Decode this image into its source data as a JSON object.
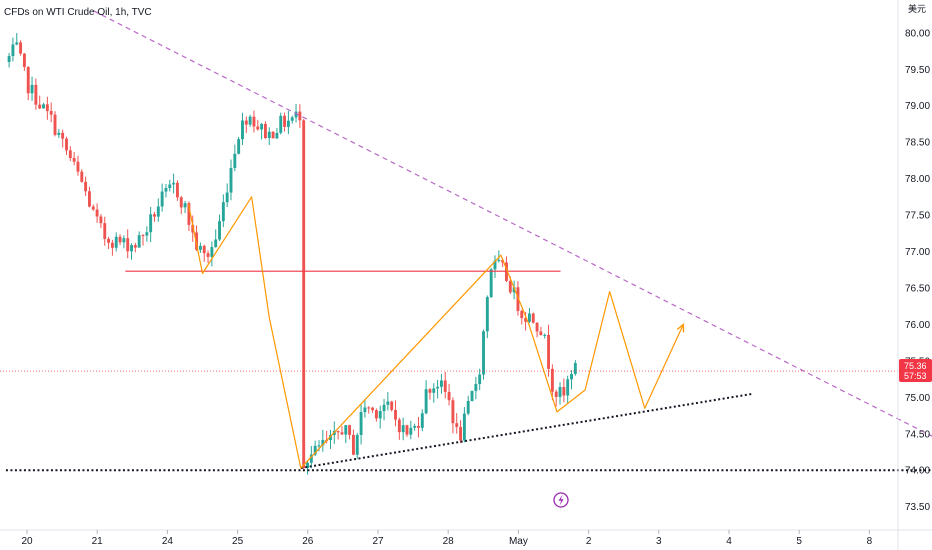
{
  "title": "CFDs on WTI Crude Oil, 1h, TVC",
  "currency_label": "美元",
  "current_price": "75.36",
  "countdown": "57:53",
  "colors": {
    "up": "#26a69a",
    "down": "#ef5350",
    "resistance": "#f23645",
    "pattern": "#ff9800",
    "trend_top": "#ba68c8",
    "support": "#131722",
    "current_price_line": "#f23645",
    "lightning": "#9c27b0"
  },
  "icons": {
    "lightning": "lightning-bolt-icon"
  },
  "chart_data": {
    "type": "candlestick",
    "title": "CFDs on WTI Crude Oil, 1h, TVC",
    "xlabel": "",
    "ylabel": "",
    "x_ticks": [
      "20",
      "21",
      "24",
      "25",
      "26",
      "27",
      "28",
      "May",
      "2",
      "3",
      "4",
      "5",
      "8"
    ],
    "y_ticks": [
      "80.00",
      "79.50",
      "79.00",
      "78.50",
      "78.00",
      "77.50",
      "77.00",
      "76.50",
      "76.00",
      "75.50",
      "75.00",
      "74.50",
      "74.00",
      "73.50"
    ],
    "ylim": [
      73.18,
      80.45
    ],
    "xlim": [
      19.7,
      8.3
    ],
    "grid": false,
    "close_path": [
      [
        19.7,
        79.6
      ],
      [
        19.85,
        79.8
      ],
      [
        20.0,
        79.3
      ],
      [
        20.2,
        79.0
      ],
      [
        20.35,
        78.8
      ],
      [
        20.5,
        78.5
      ],
      [
        20.65,
        78.2
      ],
      [
        20.8,
        77.9
      ],
      [
        20.95,
        77.5
      ],
      [
        21.1,
        77.2
      ],
      [
        21.25,
        77.15
      ],
      [
        21.4,
        77.1
      ],
      [
        21.55,
        77.1
      ],
      [
        21.7,
        77.3
      ],
      [
        21.9,
        77.7
      ],
      [
        22.1,
        77.9
      ],
      [
        22.25,
        77.6
      ],
      [
        22.4,
        77.1
      ],
      [
        22.55,
        76.9
      ],
      [
        22.7,
        77.2
      ],
      [
        22.85,
        77.9
      ],
      [
        23.0,
        78.6
      ],
      [
        23.15,
        78.9
      ],
      [
        23.3,
        78.7
      ],
      [
        23.45,
        78.6
      ],
      [
        23.6,
        78.75
      ],
      [
        23.75,
        78.8
      ],
      [
        23.9,
        78.9
      ],
      [
        24.05,
        78.3
      ],
      [
        24.2,
        77.9
      ],
      [
        24.35,
        77.2
      ],
      [
        24.5,
        76.8
      ],
      [
        24.65,
        76.9
      ],
      [
        24.8,
        77.2
      ],
      [
        24.95,
        77.5
      ],
      [
        25.1,
        77.7
      ],
      [
        25.2,
        77.3
      ],
      [
        25.3,
        77.0
      ],
      [
        25.45,
        76.8
      ],
      [
        25.6,
        76.0
      ],
      [
        25.75,
        74.9
      ],
      [
        25.9,
        74.1
      ],
      [
        26.05,
        74.2
      ],
      [
        26.2,
        74.35
      ],
      [
        26.35,
        74.4
      ],
      [
        26.5,
        74.6
      ],
      [
        26.65,
        74.3
      ],
      [
        26.8,
        74.9
      ],
      [
        26.95,
        74.8
      ],
      [
        27.1,
        74.9
      ],
      [
        27.25,
        74.7
      ],
      [
        27.4,
        74.5
      ],
      [
        27.55,
        74.6
      ],
      [
        27.7,
        75.1
      ],
      [
        27.85,
        75.2
      ],
      [
        28.0,
        75.0
      ],
      [
        28.15,
        74.4
      ],
      [
        28.3,
        74.9
      ],
      [
        28.45,
        75.4
      ],
      [
        28.6,
        76.8
      ],
      [
        28.75,
        76.8
      ],
      [
        28.9,
        76.5
      ],
      [
        29.05,
        76.15
      ],
      [
        29.2,
        76.1
      ],
      [
        29.35,
        75.9
      ],
      [
        29.5,
        75.1
      ],
      [
        29.65,
        75.0
      ],
      [
        29.75,
        75.4
      ],
      [
        29.85,
        75.36
      ]
    ],
    "series": [
      {
        "kind": "horizontal",
        "from_x": 21.4,
        "to_x": 29.6,
        "y": 76.73,
        "style": "solid",
        "color": "resistance"
      },
      {
        "kind": "horizontal",
        "from_x": 19.7,
        "to_x": 7.8,
        "y": 74.0,
        "style": "dotted",
        "color": "support"
      },
      {
        "kind": "trend",
        "points": [
          [
            20.95,
            80.3
          ],
          [
            7.85,
            74.0
          ]
        ],
        "style": "dashed",
        "color": "trend_top"
      },
      {
        "kind": "trend",
        "points": [
          [
            25.9,
            74.03
          ],
          [
            4.35,
            75.05
          ]
        ],
        "style": "dotted",
        "color": "support"
      },
      {
        "kind": "polyline",
        "points": [
          [
            24.3,
            77.65
          ],
          [
            24.5,
            76.7
          ],
          [
            25.2,
            77.75
          ],
          [
            25.45,
            76.1
          ],
          [
            25.9,
            74.03
          ],
          [
            28.75,
            76.95
          ],
          [
            29.15,
            76.0
          ],
          [
            29.55,
            74.8
          ],
          [
            1.95,
            75.1
          ],
          [
            2.3,
            76.45
          ],
          [
            2.8,
            74.85
          ],
          [
            3.35,
            76.0
          ]
        ],
        "style": "solid",
        "color": "pattern",
        "arrow_end": true
      },
      {
        "kind": "price-line",
        "y": 75.36,
        "style": "dotted",
        "color": "current_price_line"
      }
    ]
  }
}
